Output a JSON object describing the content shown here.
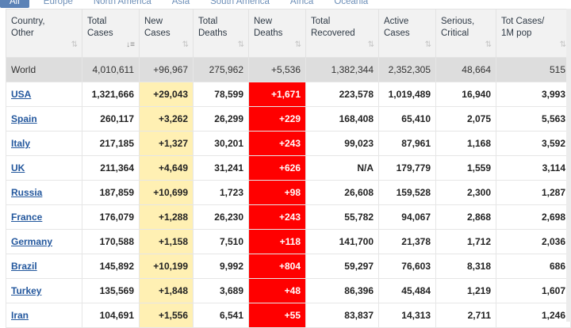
{
  "tabs": [
    "All",
    "Europe",
    "North America",
    "Asia",
    "South America",
    "Africa",
    "Oceania"
  ],
  "headers": [
    [
      "Country,",
      "Other"
    ],
    [
      "Total",
      "Cases"
    ],
    [
      "New",
      "Cases"
    ],
    [
      "Total",
      "Deaths"
    ],
    [
      "New",
      "Deaths"
    ],
    [
      "Total",
      "Recovered"
    ],
    [
      "Active",
      "Cases"
    ],
    [
      "Serious,",
      "Critical"
    ],
    [
      "Tot Cases/",
      "1M pop"
    ]
  ],
  "world": [
    "World",
    "4,010,611",
    "+96,967",
    "275,962",
    "+5,536",
    "1,382,344",
    "2,352,305",
    "48,664",
    "515"
  ],
  "rows": [
    [
      "USA",
      "1,321,666",
      "+29,043",
      "78,599",
      "+1,671",
      "223,578",
      "1,019,489",
      "16,940",
      "3,993"
    ],
    [
      "Spain",
      "260,117",
      "+3,262",
      "26,299",
      "+229",
      "168,408",
      "65,410",
      "2,075",
      "5,563"
    ],
    [
      "Italy",
      "217,185",
      "+1,327",
      "30,201",
      "+243",
      "99,023",
      "87,961",
      "1,168",
      "3,592"
    ],
    [
      "UK",
      "211,364",
      "+4,649",
      "31,241",
      "+626",
      "N/A",
      "179,779",
      "1,559",
      "3,114"
    ],
    [
      "Russia",
      "187,859",
      "+10,699",
      "1,723",
      "+98",
      "26,608",
      "159,528",
      "2,300",
      "1,287"
    ],
    [
      "France",
      "176,079",
      "+1,288",
      "26,230",
      "+243",
      "55,782",
      "94,067",
      "2,868",
      "2,698"
    ],
    [
      "Germany",
      "170,588",
      "+1,158",
      "7,510",
      "+118",
      "141,700",
      "21,378",
      "1,712",
      "2,036"
    ],
    [
      "Brazil",
      "145,892",
      "+10,199",
      "9,992",
      "+804",
      "59,297",
      "76,603",
      "8,318",
      "686"
    ],
    [
      "Turkey",
      "135,569",
      "+1,848",
      "3,689",
      "+48",
      "86,396",
      "45,484",
      "1,219",
      "1,607"
    ],
    [
      "Iran",
      "104,691",
      "+1,556",
      "6,541",
      "+55",
      "83,837",
      "14,313",
      "2,711",
      "1,246"
    ]
  ],
  "colors": {
    "new_cases_bg": "#fff0b3",
    "new_deaths_bg": "#ff0000",
    "link": "#23579d",
    "tab_active": "#5b82b6"
  }
}
